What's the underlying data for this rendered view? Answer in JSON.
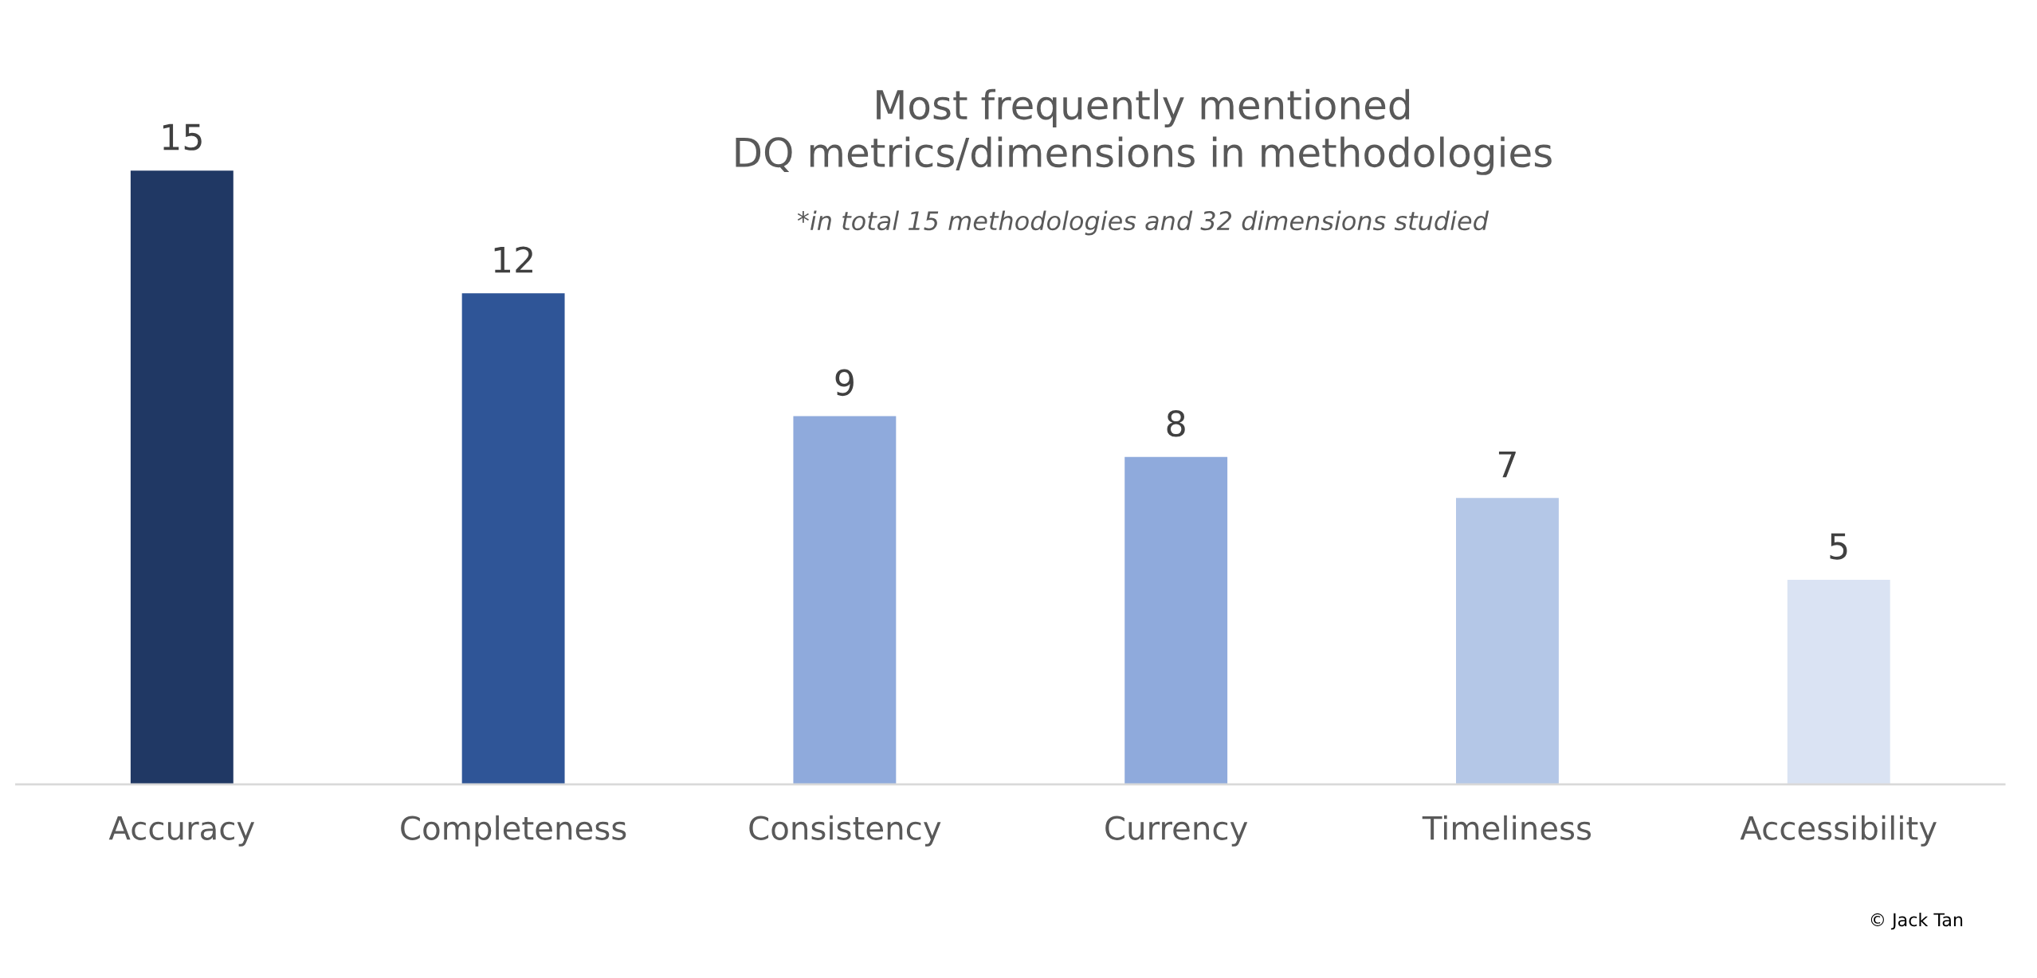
{
  "chart_data": {
    "type": "bar",
    "title": "Most frequently mentioned\nDQ metrics/dimensions in methodologies",
    "subtitle": "*in total 15 methodologies and 32 dimensions studied",
    "categories": [
      "Accuracy",
      "Completeness",
      "Consistency",
      "Currency",
      "Timeliness",
      "Accessibility"
    ],
    "values": [
      15,
      12,
      9,
      8,
      7,
      5
    ],
    "colors": [
      "#203864",
      "#2f5597",
      "#8faadc",
      "#8faadc",
      "#b4c7e7",
      "#dae3f3"
    ],
    "data_labels": true,
    "grid": false,
    "legend": false,
    "annotations": [
      "© Jack Tan"
    ]
  }
}
